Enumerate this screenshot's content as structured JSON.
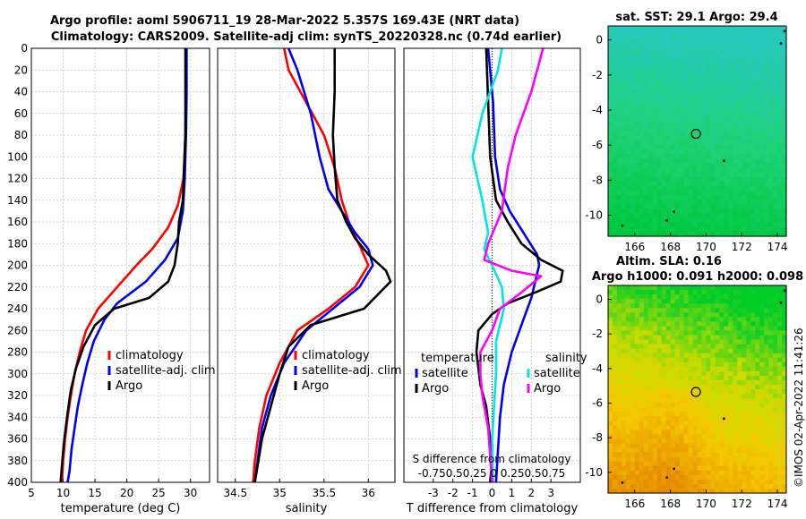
{
  "titles": {
    "line1": "Argo profile: aoml 5906711_19 28-Mar-2022 5.357S 169.43E (NRT data)",
    "line2": "Climatology: CARS2009. Satellite-adj clim: synTS_20220328.nc (0.74d earlier)",
    "map1": "sat. SST: 29.1 Argo: 29.4",
    "map2_line1": "Altim. SLA: 0.16",
    "map2_line2": "Argo h1000: 0.091 h2000: 0.098",
    "copyright": "©IMOS 02-Apr-2022 11:41:26"
  },
  "colors": {
    "climatology": "#ff0000",
    "satellite": "#0000ee",
    "argo": "#000000",
    "sal_satellite": "#00e5e5",
    "sal_argo": "#ff00ff"
  },
  "chart_data": [
    {
      "type": "line",
      "name": "temperature",
      "xlabel": "temperature (deg C)",
      "ylabel": "",
      "xlim": [
        5,
        33
      ],
      "ylim": [
        400,
        0
      ],
      "xticks": [
        "5",
        "10",
        "15",
        "20",
        "25",
        "30"
      ],
      "xtick_values": [
        5,
        10,
        15,
        20,
        25,
        30
      ],
      "yticks": [
        "0",
        "20",
        "40",
        "60",
        "80",
        "100",
        "120",
        "140",
        "160",
        "180",
        "200",
        "220",
        "240",
        "260",
        "280",
        "300",
        "320",
        "340",
        "360",
        "380",
        "400"
      ],
      "legend": [
        "climatology",
        "satellite-adj. clim",
        "Argo"
      ],
      "series": [
        {
          "name": "climatology",
          "color": "#ff0000",
          "points": [
            [
              29.3,
              0
            ],
            [
              29.3,
              40
            ],
            [
              29.2,
              80
            ],
            [
              28.9,
              120
            ],
            [
              28.0,
              145
            ],
            [
              26.5,
              165
            ],
            [
              24.0,
              185
            ],
            [
              21.5,
              200
            ],
            [
              18.5,
              220
            ],
            [
              15.5,
              240
            ],
            [
              13.6,
              260
            ],
            [
              12.6,
              280
            ],
            [
              11.8,
              300
            ],
            [
              11.2,
              320
            ],
            [
              10.7,
              340
            ],
            [
              10.3,
              360
            ],
            [
              10.0,
              380
            ],
            [
              9.8,
              400
            ]
          ]
        },
        {
          "name": "satellite-adj. clim",
          "color": "#0000ee",
          "points": [
            [
              29.4,
              0
            ],
            [
              29.4,
              40
            ],
            [
              29.3,
              80
            ],
            [
              29.1,
              120
            ],
            [
              28.8,
              150
            ],
            [
              28.0,
              175
            ],
            [
              26.0,
              195
            ],
            [
              23.0,
              215
            ],
            [
              18.5,
              235
            ],
            [
              16.5,
              250
            ],
            [
              14.8,
              270
            ],
            [
              13.8,
              290
            ],
            [
              13.0,
              310
            ],
            [
              12.3,
              330
            ],
            [
              11.8,
              350
            ],
            [
              11.3,
              370
            ],
            [
              11.0,
              390
            ],
            [
              10.7,
              400
            ]
          ]
        },
        {
          "name": "Argo",
          "color": "#000000",
          "points": [
            [
              29.2,
              0
            ],
            [
              29.2,
              40
            ],
            [
              29.2,
              80
            ],
            [
              29.0,
              110
            ],
            [
              28.8,
              140
            ],
            [
              28.2,
              160
            ],
            [
              28.0,
              180
            ],
            [
              27.5,
              200
            ],
            [
              26.5,
              215
            ],
            [
              23.5,
              230
            ],
            [
              18.0,
              240
            ],
            [
              15.0,
              255
            ],
            [
              13.2,
              275
            ],
            [
              12.0,
              295
            ],
            [
              11.2,
              315
            ],
            [
              10.6,
              340
            ],
            [
              10.1,
              365
            ],
            [
              9.8,
              385
            ],
            [
              9.6,
              400
            ]
          ]
        }
      ]
    },
    {
      "type": "line",
      "name": "salinity",
      "xlabel": "salinity",
      "xlim": [
        34.3,
        36.3
      ],
      "ylim": [
        400,
        0
      ],
      "xticks": [
        "34.5",
        "35",
        "35.5",
        "36"
      ],
      "xtick_values": [
        34.5,
        35.0,
        35.5,
        36.0
      ],
      "legend": [
        "climatology",
        "satellite-adj. clim",
        "Argo"
      ],
      "series": [
        {
          "name": "climatology",
          "color": "#ff0000",
          "points": [
            [
              35.05,
              0
            ],
            [
              35.1,
              20
            ],
            [
              35.3,
              50
            ],
            [
              35.5,
              80
            ],
            [
              35.62,
              110
            ],
            [
              35.7,
              140
            ],
            [
              35.8,
              165
            ],
            [
              35.92,
              185
            ],
            [
              36.0,
              200
            ],
            [
              35.85,
              220
            ],
            [
              35.55,
              240
            ],
            [
              35.2,
              260
            ],
            [
              35.0,
              290
            ],
            [
              34.85,
              320
            ],
            [
              34.77,
              350
            ],
            [
              34.72,
              380
            ],
            [
              34.7,
              400
            ]
          ]
        },
        {
          "name": "satellite-adj. clim",
          "color": "#0000ee",
          "points": [
            [
              35.1,
              0
            ],
            [
              35.2,
              20
            ],
            [
              35.35,
              60
            ],
            [
              35.45,
              100
            ],
            [
              35.55,
              130
            ],
            [
              35.7,
              150
            ],
            [
              35.85,
              170
            ],
            [
              36.0,
              185
            ],
            [
              36.05,
              200
            ],
            [
              35.9,
              220
            ],
            [
              35.6,
              240
            ],
            [
              35.3,
              260
            ],
            [
              35.05,
              290
            ],
            [
              34.9,
              320
            ],
            [
              34.8,
              350
            ],
            [
              34.75,
              380
            ],
            [
              34.72,
              400
            ]
          ]
        },
        {
          "name": "Argo",
          "color": "#000000",
          "points": [
            [
              35.62,
              0
            ],
            [
              35.62,
              40
            ],
            [
              35.6,
              80
            ],
            [
              35.62,
              110
            ],
            [
              35.65,
              140
            ],
            [
              35.75,
              160
            ],
            [
              35.85,
              175
            ],
            [
              36.0,
              190
            ],
            [
              36.2,
              205
            ],
            [
              36.25,
              215
            ],
            [
              35.95,
              240
            ],
            [
              35.35,
              255
            ],
            [
              35.1,
              275
            ],
            [
              35.0,
              300
            ],
            [
              34.9,
              330
            ],
            [
              34.8,
              360
            ],
            [
              34.75,
              385
            ],
            [
              34.72,
              400
            ]
          ]
        }
      ]
    },
    {
      "type": "line",
      "name": "difference",
      "xlabel": "T difference from climatology",
      "xlabel_top": "S difference from climatology",
      "xlim": [
        -4.5,
        4.5
      ],
      "ylim": [
        400,
        0
      ],
      "xticks": [
        "-3",
        "-2",
        "-1",
        "0",
        "1",
        "2",
        "3"
      ],
      "xtick_values": [
        -3,
        -2,
        -1,
        0,
        1,
        2,
        3
      ],
      "sticks_label": "-0.750.50.25 0  0.250.50.75",
      "legend_temperature": {
        "title": "temperature",
        "items": [
          "satellite",
          "Argo"
        ]
      },
      "legend_salinity": {
        "title": "salinity",
        "items": [
          "satellite",
          "Argo"
        ]
      },
      "series": [
        {
          "name": "temperature satellite",
          "color": "#0000ee",
          "points": [
            [
              -0.2,
              0
            ],
            [
              0.05,
              50
            ],
            [
              0.15,
              100
            ],
            [
              0.4,
              130
            ],
            [
              0.9,
              150
            ],
            [
              1.6,
              170
            ],
            [
              2.3,
              190
            ],
            [
              2.4,
              200
            ],
            [
              2.0,
              230
            ],
            [
              1.6,
              250
            ],
            [
              1.0,
              280
            ],
            [
              0.6,
              310
            ],
            [
              0.4,
              340
            ],
            [
              0.3,
              370
            ],
            [
              0.2,
              400
            ]
          ]
        },
        {
          "name": "temperature Argo",
          "color": "#000000",
          "points": [
            [
              -0.3,
              0
            ],
            [
              -0.2,
              50
            ],
            [
              -0.1,
              100
            ],
            [
              0.2,
              140
            ],
            [
              0.8,
              160
            ],
            [
              1.5,
              180
            ],
            [
              2.5,
              195
            ],
            [
              3.6,
              205
            ],
            [
              3.5,
              215
            ],
            [
              2.2,
              225
            ],
            [
              0.8,
              235
            ],
            [
              0.0,
              245
            ],
            [
              -0.7,
              260
            ],
            [
              -0.8,
              280
            ],
            [
              -0.6,
              310
            ],
            [
              -0.3,
              330
            ],
            [
              -0.1,
              360
            ],
            [
              0.0,
              380
            ],
            [
              -0.1,
              400
            ]
          ]
        },
        {
          "name": "salinity satellite",
          "color": "#00e5e5",
          "points": [
            [
              0.5,
              0
            ],
            [
              0.3,
              20
            ],
            [
              -0.5,
              60
            ],
            [
              -1.0,
              100
            ],
            [
              -0.5,
              140
            ],
            [
              -0.2,
              170
            ],
            [
              -0.4,
              185
            ],
            [
              0.0,
              200
            ],
            [
              0.5,
              220
            ],
            [
              0.6,
              240
            ],
            [
              0.2,
              270
            ],
            [
              0.2,
              300
            ],
            [
              0.1,
              330
            ],
            [
              0.0,
              360
            ],
            [
              0.05,
              400
            ]
          ]
        },
        {
          "name": "salinity Argo",
          "color": "#ff00ff",
          "points": [
            [
              2.6,
              0
            ],
            [
              2.0,
              40
            ],
            [
              1.2,
              80
            ],
            [
              0.8,
              110
            ],
            [
              0.5,
              150
            ],
            [
              -0.2,
              180
            ],
            [
              -0.4,
              195
            ],
            [
              1.0,
              205
            ],
            [
              2.5,
              210
            ],
            [
              1.5,
              225
            ],
            [
              0.4,
              240
            ],
            [
              0.0,
              260
            ],
            [
              -0.6,
              280
            ],
            [
              -0.6,
              300
            ],
            [
              -0.5,
              320
            ],
            [
              -0.2,
              350
            ],
            [
              0.0,
              400
            ]
          ]
        }
      ]
    },
    {
      "type": "heatmap",
      "name": "sat-sst-map",
      "title": "sat. SST: 29.1 Argo: 29.4",
      "xlim": [
        164.5,
        174.5
      ],
      "ylim": [
        -11.2,
        0.8
      ],
      "xticks": [
        "166",
        "168",
        "170",
        "172",
        "174"
      ],
      "xtick_values": [
        166,
        168,
        170,
        172,
        174
      ],
      "yticks": [
        "0",
        "-2",
        "-4",
        "-6",
        "-8",
        "-10"
      ],
      "ytick_values": [
        0,
        -2,
        -4,
        -6,
        -8,
        -10
      ],
      "marker": [
        169.43,
        -5.357
      ]
    },
    {
      "type": "heatmap",
      "name": "sla-map",
      "title": "Altim. SLA: 0.16",
      "xlim": [
        164.5,
        174.5
      ],
      "ylim": [
        -11.2,
        0.8
      ],
      "xticks": [
        "166",
        "168",
        "170",
        "172",
        "174"
      ],
      "xtick_values": [
        166,
        168,
        170,
        172,
        174
      ],
      "yticks": [
        "0",
        "-2",
        "-4",
        "-6",
        "-8",
        "-10"
      ],
      "ytick_values": [
        0,
        -2,
        -4,
        -6,
        -8,
        -10
      ],
      "marker": [
        169.43,
        -5.357
      ]
    }
  ]
}
